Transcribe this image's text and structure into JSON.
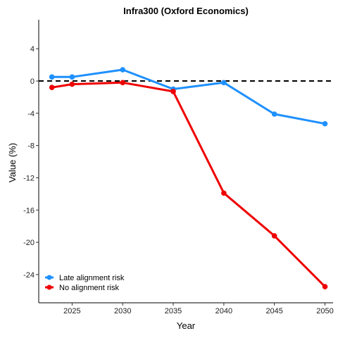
{
  "chart_data": {
    "type": "line",
    "title": "Infra300 (Oxford Economics)",
    "xlabel": "Year",
    "ylabel": "Value (%)",
    "x": [
      2023,
      2025,
      2030,
      2035,
      2040,
      2045,
      2050
    ],
    "xticks": [
      2025,
      2030,
      2035,
      2040,
      2045,
      2050
    ],
    "yticks": [
      4,
      0,
      -4,
      -8,
      -12,
      -16,
      -20,
      -24
    ],
    "xlim": [
      2021.7,
      2050.8
    ],
    "ylim": [
      -27.5,
      7.6
    ],
    "grid": false,
    "legend_position": "bottom-left",
    "reference_line": {
      "y": 0,
      "style": "dashed",
      "color": "#000000"
    },
    "series": [
      {
        "name": "Late alignment risk",
        "color": "#1E90FF",
        "values": [
          0.5,
          0.5,
          1.4,
          -1.0,
          -0.2,
          -4.1,
          -5.3
        ]
      },
      {
        "name": "No alignment risk",
        "color": "#EE0000",
        "values": [
          -0.8,
          -0.4,
          -0.2,
          -1.3,
          -13.9,
          -19.2,
          -25.5
        ]
      }
    ]
  }
}
